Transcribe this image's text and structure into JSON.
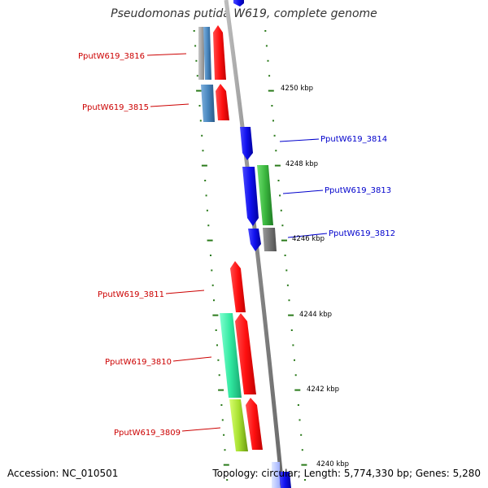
{
  "title": "Pseudomonas putida W619, complete genome",
  "footer": {
    "accession": "Accession: NC_010501",
    "summary": "Topology: circular; Length: 5,774,330 bp; Genes: 5,280"
  },
  "colors": {
    "reverse_label": "#cc0000",
    "forward_label": "#0000cc",
    "backbone": "#8a8a8a",
    "tick": "#2a7a1a",
    "red_gene": "#ff1010",
    "blue_gene": "#1010ee",
    "steel_gene": "#4a88c0",
    "green_gene": "#3cb840",
    "gray_gene": "#707070",
    "teal_gene": "#30e8a0",
    "lime_gene": "#a8e030"
  },
  "scale_labels": [
    "4250 kbp",
    "4248 kbp",
    "4246 kbp",
    "4244 kbp",
    "4242 kbp",
    "4240 kbp"
  ],
  "gene_labels": [
    {
      "id": "3816",
      "text": "PputW619_3816",
      "strand": "reverse"
    },
    {
      "id": "3815",
      "text": "PputW619_3815",
      "strand": "reverse"
    },
    {
      "id": "3814",
      "text": "PputW619_3814",
      "strand": "forward"
    },
    {
      "id": "3813",
      "text": "PputW619_3813",
      "strand": "forward"
    },
    {
      "id": "3812",
      "text": "PputW619_3812",
      "strand": "forward"
    },
    {
      "id": "3811",
      "text": "PputW619_3811",
      "strand": "reverse"
    },
    {
      "id": "3810",
      "text": "PputW619_3810",
      "strand": "reverse"
    },
    {
      "id": "3809",
      "text": "PputW619_3809",
      "strand": "reverse"
    }
  ]
}
